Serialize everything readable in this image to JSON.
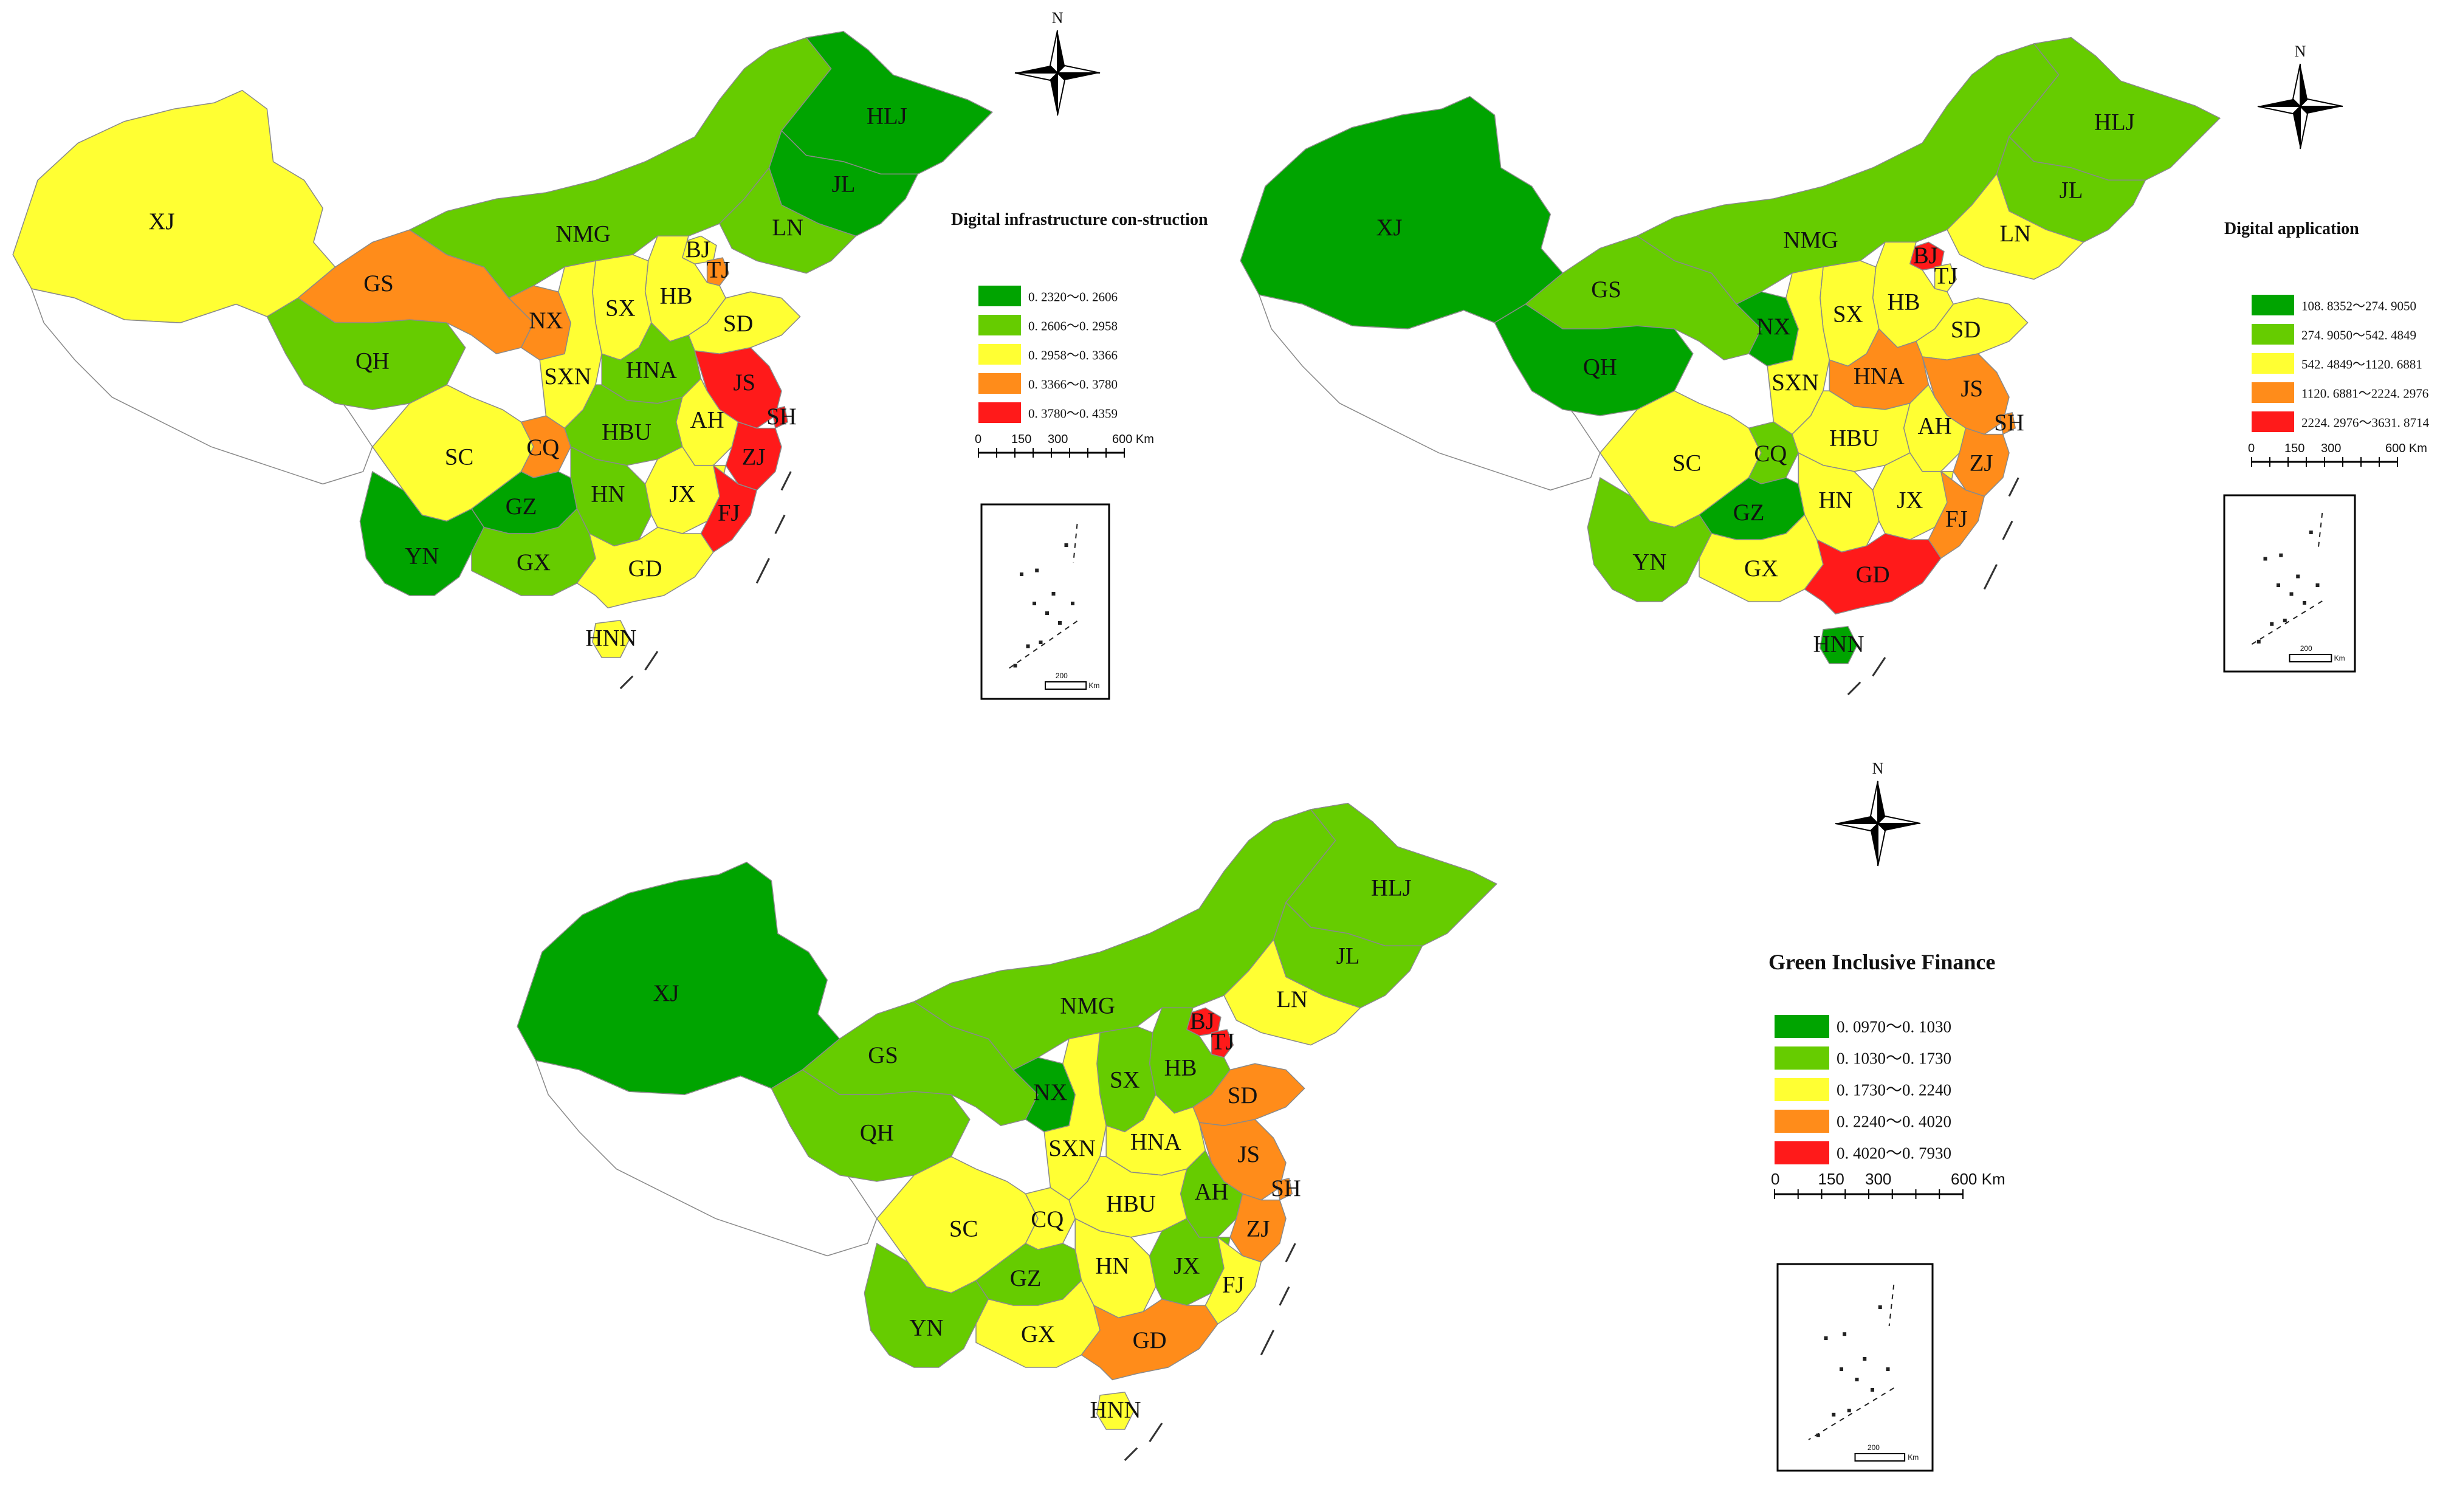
{
  "colors": {
    "dark_green": "#00a400",
    "green": "#66cc00",
    "yellow": "#ffff33",
    "orange": "#ff8c1a",
    "red": "#ff1a1a"
  },
  "north_label": "N",
  "scale_ticks": [
    "0",
    "150",
    "300",
    "600 Km"
  ],
  "inset_scale_label": "200",
  "inset_scale_unit": "Km",
  "maps": [
    {
      "id": "map1",
      "legend_title": "Digital infrastructure con-struction",
      "legend_items": [
        {
          "label": "0. 2320～0. 2606",
          "color": "#00a400"
        },
        {
          "label": "0. 2606～0. 2958",
          "color": "#66cc00"
        },
        {
          "label": "0. 2958～0. 3366",
          "color": "#ffff33"
        },
        {
          "label": "0. 3366～0. 3780",
          "color": "#ff8c1a"
        },
        {
          "label": "0. 3780～0. 4359",
          "color": "#ff1a1a"
        }
      ],
      "provinces": {
        "XJ": "#ffff33",
        "GS": "#ff8c1a",
        "NMG": "#66cc00",
        "HLJ": "#00a400",
        "JL": "#00a400",
        "LN": "#66cc00",
        "QH": "#66cc00",
        "NX": "#ff8c1a",
        "BJ": "#ffff33",
        "TJ": "#ff8c1a",
        "HB": "#ffff33",
        "SX": "#ffff33",
        "SD": "#ffff33",
        "SXN": "#ffff33",
        "HNA": "#66cc00",
        "JS": "#ff1a1a",
        "SH": "#ff1a1a",
        "AH": "#ffff33",
        "SC": "#ffff33",
        "CQ": "#ff8c1a",
        "HBU": "#66cc00",
        "ZJ": "#ff1a1a",
        "HN": "#66cc00",
        "JX": "#ffff33",
        "FJ": "#ff1a1a",
        "GZ": "#00a400",
        "YN": "#00a400",
        "GX": "#66cc00",
        "GD": "#ffff33",
        "HNN": "#ffff33",
        "XZ": "#ffffff"
      }
    },
    {
      "id": "map2",
      "legend_title": "Digital application",
      "legend_items": [
        {
          "label": "108. 8352～274. 9050",
          "color": "#00a400"
        },
        {
          "label": "274. 9050～542. 4849",
          "color": "#66cc00"
        },
        {
          "label": "542. 4849～1120. 6881",
          "color": "#ffff33"
        },
        {
          "label": "1120. 6881～2224. 2976",
          "color": "#ff8c1a"
        },
        {
          "label": "2224. 2976～3631. 8714",
          "color": "#ff1a1a"
        }
      ],
      "provinces": {
        "XJ": "#00a400",
        "GS": "#66cc00",
        "NMG": "#66cc00",
        "HLJ": "#66cc00",
        "JL": "#66cc00",
        "LN": "#ffff33",
        "QH": "#00a400",
        "NX": "#00a400",
        "BJ": "#ff1a1a",
        "TJ": "#ffff33",
        "HB": "#ffff33",
        "SX": "#ffff33",
        "SD": "#ffff33",
        "SXN": "#ffff33",
        "HNA": "#ff8c1a",
        "JS": "#ff8c1a",
        "SH": "#ff8c1a",
        "AH": "#ffff33",
        "SC": "#ffff33",
        "CQ": "#66cc00",
        "HBU": "#ffff33",
        "ZJ": "#ff8c1a",
        "HN": "#ffff33",
        "JX": "#ffff33",
        "FJ": "#ff8c1a",
        "GZ": "#00a400",
        "YN": "#66cc00",
        "GX": "#ffff33",
        "GD": "#ff1a1a",
        "HNN": "#00a400",
        "XZ": "#ffffff"
      }
    },
    {
      "id": "map3",
      "legend_title": "Green Inclusive Finance",
      "legend_items": [
        {
          "label": "0. 0970～0. 1030",
          "color": "#00a400"
        },
        {
          "label": "0. 1030～0. 1730",
          "color": "#66cc00"
        },
        {
          "label": "0. 1730～0. 2240",
          "color": "#ffff33"
        },
        {
          "label": "0. 2240～0. 4020",
          "color": "#ff8c1a"
        },
        {
          "label": "0. 4020～0. 7930",
          "color": "#ff1a1a"
        }
      ],
      "provinces": {
        "XJ": "#00a400",
        "GS": "#66cc00",
        "NMG": "#66cc00",
        "HLJ": "#66cc00",
        "JL": "#66cc00",
        "LN": "#ffff33",
        "QH": "#66cc00",
        "NX": "#00a400",
        "BJ": "#ff1a1a",
        "TJ": "#ff1a1a",
        "HB": "#66cc00",
        "SX": "#66cc00",
        "SD": "#ff8c1a",
        "SXN": "#ffff33",
        "HNA": "#ffff33",
        "JS": "#ff8c1a",
        "SH": "#ff8c1a",
        "AH": "#66cc00",
        "SC": "#ffff33",
        "CQ": "#ffff33",
        "HBU": "#ffff33",
        "ZJ": "#ff8c1a",
        "HN": "#ffff33",
        "JX": "#66cc00",
        "FJ": "#ffff33",
        "GZ": "#66cc00",
        "YN": "#66cc00",
        "GX": "#ffff33",
        "GD": "#ff8c1a",
        "HNN": "#ffff33",
        "XZ": "#ffffff"
      }
    }
  ]
}
